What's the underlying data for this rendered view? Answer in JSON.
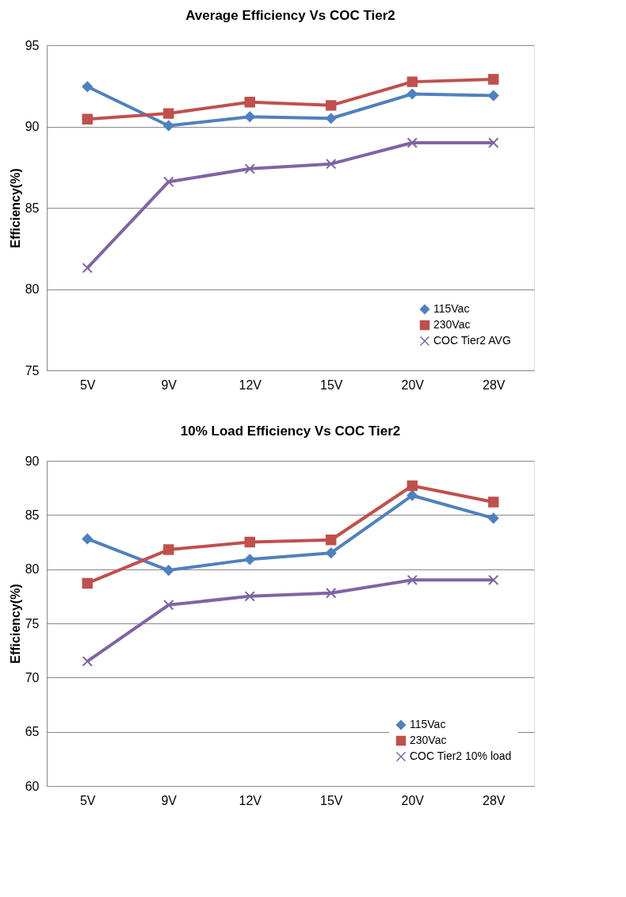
{
  "chart_data": [
    {
      "type": "line",
      "title": "Average Efficiency Vs COC Tier2",
      "ylabel": "Efficiency(%)",
      "categories": [
        "5V",
        "9V",
        "12V",
        "15V",
        "20V",
        "28V"
      ],
      "ylim": [
        75,
        95
      ],
      "yticks": [
        75,
        80,
        85,
        90,
        95
      ],
      "grid": "y",
      "legend": "bottom right",
      "series": [
        {
          "name": "115Vac",
          "color": "#4f81bd",
          "marker": "diamond",
          "values": [
            92.45,
            90.05,
            90.6,
            90.5,
            92.0,
            91.9
          ]
        },
        {
          "name": "230Vac",
          "color": "#c0504d",
          "marker": "square",
          "values": [
            90.45,
            90.8,
            91.5,
            91.3,
            92.75,
            92.9
          ]
        },
        {
          "name": "COC Tier2 AVG",
          "color": "#8064a2",
          "marker": "cross",
          "values": [
            81.3,
            86.6,
            87.4,
            87.7,
            89.0,
            89.0
          ]
        }
      ]
    },
    {
      "type": "line",
      "title": "10% Load Efficiency Vs COC Tier2",
      "ylabel": "Efficiency(%)",
      "categories": [
        "5V",
        "9V",
        "12V",
        "15V",
        "20V",
        "28V"
      ],
      "ylim": [
        60,
        90
      ],
      "yticks": [
        60,
        65,
        70,
        75,
        80,
        85,
        90
      ],
      "grid": "y",
      "legend": "bottom right",
      "series": [
        {
          "name": "115Vac",
          "color": "#4f81bd",
          "marker": "diamond",
          "values": [
            82.8,
            79.9,
            80.9,
            81.5,
            86.8,
            84.7
          ]
        },
        {
          "name": "230Vac",
          "color": "#c0504d",
          "marker": "square",
          "values": [
            78.7,
            81.8,
            82.5,
            82.7,
            87.7,
            86.2
          ]
        },
        {
          "name": "COC Tier2 10% load",
          "color": "#8064a2",
          "marker": "cross",
          "values": [
            71.5,
            76.7,
            77.5,
            77.8,
            79.0,
            79.0
          ]
        }
      ]
    }
  ]
}
